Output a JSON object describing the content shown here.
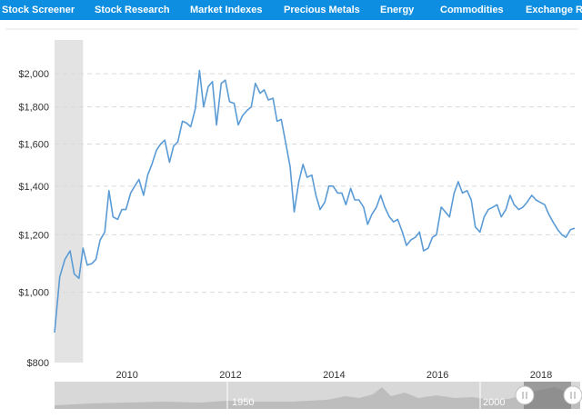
{
  "nav": {
    "items": [
      {
        "label": "Stock Screener"
      },
      {
        "label": "Stock Research"
      },
      {
        "label": "Market Indexes"
      },
      {
        "label": "Precious Metals"
      },
      {
        "label": "Energy"
      },
      {
        "label": "Commodities"
      },
      {
        "label": "Exchange Rat"
      }
    ]
  },
  "colors": {
    "nav_bg": "#0d8ee0",
    "line": "#5b9bd5",
    "recession": "#e3e3e3",
    "grid": "#d9d9d9"
  },
  "chart_data": {
    "type": "line",
    "title": "",
    "xlabel": "",
    "ylabel": "",
    "y_scale": "log",
    "ylim": [
      800,
      2150
    ],
    "xlim": [
      2008.6,
      2018.65
    ],
    "yticks": [
      {
        "value": 800,
        "label": "$800"
      },
      {
        "value": 1000,
        "label": "$1,000"
      },
      {
        "value": 1200,
        "label": "$1,200"
      },
      {
        "value": 1400,
        "label": "$1,400"
      },
      {
        "value": 1600,
        "label": "$1,600"
      },
      {
        "value": 1800,
        "label": "$1,800"
      },
      {
        "value": 2000,
        "label": "$2,000"
      }
    ],
    "xticks": [
      {
        "value": 2010,
        "label": "2010"
      },
      {
        "value": 2012,
        "label": "2012"
      },
      {
        "value": 2014,
        "label": "2014"
      },
      {
        "value": 2016,
        "label": "2016"
      },
      {
        "value": 2018,
        "label": "2018"
      }
    ],
    "grid": true,
    "recession_band": [
      2008.6,
      2009.15
    ],
    "series": [
      {
        "x": [
          2008.6,
          2008.7,
          2008.8,
          2008.9,
          2008.98,
          2009.07,
          2009.15,
          2009.23,
          2009.32,
          2009.4,
          2009.48,
          2009.57,
          2009.65,
          2009.73,
          2009.82,
          2009.9,
          2009.98,
          2010.07,
          2010.15,
          2010.23,
          2010.32,
          2010.4,
          2010.48,
          2010.57,
          2010.65,
          2010.73,
          2010.82,
          2010.9,
          2010.98,
          2011.07,
          2011.15,
          2011.23,
          2011.32,
          2011.4,
          2011.48,
          2011.57,
          2011.65,
          2011.73,
          2011.82,
          2011.9,
          2011.98,
          2012.07,
          2012.15,
          2012.23,
          2012.32,
          2012.4,
          2012.48,
          2012.57,
          2012.65,
          2012.73,
          2012.82,
          2012.9,
          2012.98,
          2013.07,
          2013.15,
          2013.23,
          2013.32,
          2013.4,
          2013.48,
          2013.57,
          2013.65,
          2013.73,
          2013.82,
          2013.9,
          2013.98,
          2014.07,
          2014.15,
          2014.23,
          2014.32,
          2014.4,
          2014.48,
          2014.57,
          2014.65,
          2014.73,
          2014.82,
          2014.9,
          2014.98,
          2015.07,
          2015.15,
          2015.23,
          2015.32,
          2015.4,
          2015.48,
          2015.57,
          2015.65,
          2015.73,
          2015.82,
          2015.9,
          2015.98,
          2016.07,
          2016.15,
          2016.23,
          2016.32,
          2016.4,
          2016.48,
          2016.57,
          2016.65,
          2016.73,
          2016.82,
          2016.9,
          2016.98,
          2017.07,
          2017.15,
          2017.23,
          2017.32,
          2017.4,
          2017.48,
          2017.57,
          2017.65,
          2017.73,
          2017.82,
          2017.9,
          2017.98,
          2018.07,
          2018.15,
          2018.23,
          2018.32,
          2018.4,
          2018.48,
          2018.57,
          2018.65
        ],
        "y": [
          880,
          1050,
          1110,
          1140,
          1060,
          1045,
          1150,
          1090,
          1095,
          1110,
          1180,
          1210,
          1380,
          1270,
          1260,
          1300,
          1300,
          1370,
          1400,
          1430,
          1360,
          1450,
          1500,
          1570,
          1600,
          1620,
          1510,
          1590,
          1610,
          1720,
          1710,
          1690,
          1790,
          2020,
          1800,
          1920,
          1950,
          1700,
          1940,
          1960,
          1830,
          1820,
          1700,
          1750,
          1780,
          1800,
          1940,
          1880,
          1900,
          1840,
          1850,
          1720,
          1730,
          1600,
          1490,
          1290,
          1420,
          1500,
          1440,
          1450,
          1360,
          1300,
          1330,
          1400,
          1400,
          1370,
          1370,
          1320,
          1390,
          1340,
          1340,
          1310,
          1240,
          1280,
          1310,
          1360,
          1310,
          1270,
          1250,
          1260,
          1210,
          1160,
          1180,
          1190,
          1210,
          1140,
          1150,
          1190,
          1200,
          1310,
          1290,
          1270,
          1370,
          1420,
          1370,
          1380,
          1340,
          1230,
          1210,
          1270,
          1300,
          1310,
          1320,
          1270,
          1300,
          1360,
          1320,
          1300,
          1310,
          1330,
          1360,
          1340,
          1330,
          1320,
          1280,
          1250,
          1220,
          1200,
          1190,
          1220,
          1225
        ]
      }
    ],
    "navigator": {
      "labels": [
        "1950",
        "2000"
      ]
    }
  }
}
